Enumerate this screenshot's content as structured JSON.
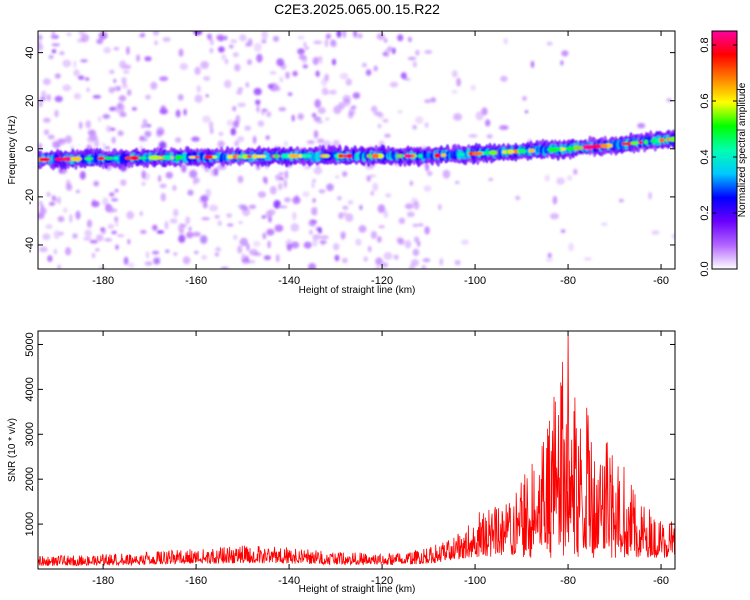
{
  "title": "C2E3.2025.065.00.15.R22",
  "chart_data": [
    {
      "type": "heatmap",
      "xlabel": "Height of straight line (km)",
      "ylabel": "Frequency (Hz)",
      "xlim": [
        -194,
        -57
      ],
      "ylim": [
        -50,
        49
      ],
      "xticks": [
        -180,
        -160,
        -140,
        -120,
        -100,
        -80,
        -60
      ],
      "yticks": [
        -40,
        -20,
        0,
        20,
        40
      ],
      "colorbar": {
        "label": "Normalized spectral amplitude",
        "range": [
          0.0,
          0.85
        ],
        "ticks": [
          0.0,
          0.2,
          0.4,
          0.6,
          0.8
        ],
        "colors": [
          "#ffffff",
          "#b366ff",
          "#6a00ff",
          "#0000ff",
          "#00c8ff",
          "#00ffb0",
          "#00ff00",
          "#ffff00",
          "#ff8000",
          "#ff0000",
          "#ff00a0"
        ]
      },
      "ridge": {
        "x": [
          -194,
          -180,
          -160,
          -140,
          -120,
          -110,
          -100,
          -90,
          -80,
          -70,
          -60,
          -57
        ],
        "y": [
          -4.5,
          -4,
          -3.5,
          -3,
          -3,
          -3,
          -2,
          -1,
          0,
          1.5,
          3.5,
          4
        ]
      },
      "grid": false
    },
    {
      "type": "line",
      "xlabel": "Height of straight line (km)",
      "ylabel": "SNR (10 * v/v)",
      "xlim": [
        -194,
        -57
      ],
      "ylim": [
        0,
        5300
      ],
      "xticks": [
        -180,
        -160,
        -140,
        -120,
        -100,
        -80,
        -60
      ],
      "yticks": [
        1000,
        2000,
        3000,
        4000,
        5000
      ],
      "color": "#ff0000",
      "envelope": {
        "x": [
          -194,
          -180,
          -170,
          -160,
          -150,
          -140,
          -130,
          -120,
          -112,
          -106,
          -102,
          -98,
          -95,
          -92,
          -89,
          -86,
          -84,
          -82,
          -80,
          -78,
          -76,
          -74,
          -72,
          -70,
          -68,
          -65,
          -62,
          -60,
          -57
        ],
        "y": [
          280,
          320,
          380,
          450,
          520,
          480,
          400,
          330,
          430,
          620,
          900,
          1400,
          1550,
          1700,
          2150,
          2600,
          3300,
          4400,
          5300,
          3300,
          3600,
          2700,
          3850,
          2900,
          2300,
          1500,
          1300,
          1100,
          1050
        ]
      },
      "grid": false
    }
  ]
}
